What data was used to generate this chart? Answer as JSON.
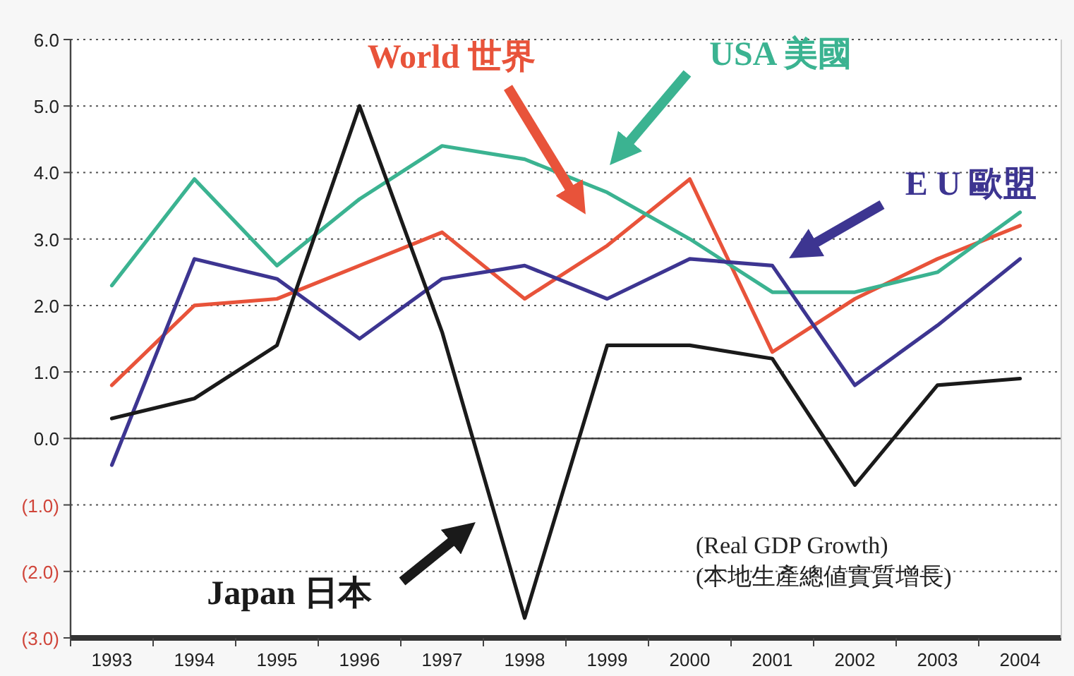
{
  "chart_data": {
    "type": "line",
    "categories": [
      "1993",
      "1994",
      "1995",
      "1996",
      "1997",
      "1998",
      "1999",
      "2000",
      "2001",
      "2002",
      "2003",
      "2004"
    ],
    "series": [
      {
        "name": "World 世界",
        "color": "#e8533a",
        "values": [
          0.8,
          2.0,
          2.1,
          2.6,
          3.1,
          2.1,
          2.9,
          3.9,
          1.3,
          2.1,
          2.7,
          3.2
        ]
      },
      {
        "name": "USA 美國",
        "color": "#3bb391",
        "values": [
          2.3,
          3.9,
          2.6,
          3.6,
          4.4,
          4.2,
          3.7,
          3.0,
          2.2,
          2.2,
          2.5,
          3.4
        ]
      },
      {
        "name": "E U 歐盟",
        "color": "#3d3591",
        "values": [
          -0.4,
          2.7,
          2.4,
          1.5,
          2.4,
          2.6,
          2.1,
          2.7,
          2.6,
          0.8,
          1.7,
          2.7
        ]
      },
      {
        "name": "Japan 日本",
        "color": "#1a1a1a",
        "values": [
          0.3,
          0.6,
          1.4,
          5.0,
          1.6,
          -2.7,
          1.4,
          1.4,
          1.2,
          -0.7,
          0.8,
          0.9
        ]
      }
    ],
    "ylim": [
      -3,
      6
    ],
    "yticks": [
      {
        "value": -3,
        "label": "(3.0)"
      },
      {
        "value": -2,
        "label": "(2.0)"
      },
      {
        "value": -1,
        "label": "(1.0)"
      },
      {
        "value": 0,
        "label": "0.0"
      },
      {
        "value": 1,
        "label": "1.0"
      },
      {
        "value": 2,
        "label": "2.0"
      },
      {
        "value": 3,
        "label": "3.0"
      },
      {
        "value": 4,
        "label": "4.0"
      },
      {
        "value": 5,
        "label": "5.0"
      },
      {
        "value": 6,
        "label": "6.0"
      }
    ],
    "grid": "y",
    "annotations": [
      "(Real GDP Growth)",
      "(本地生產總値實質增長)"
    ]
  }
}
